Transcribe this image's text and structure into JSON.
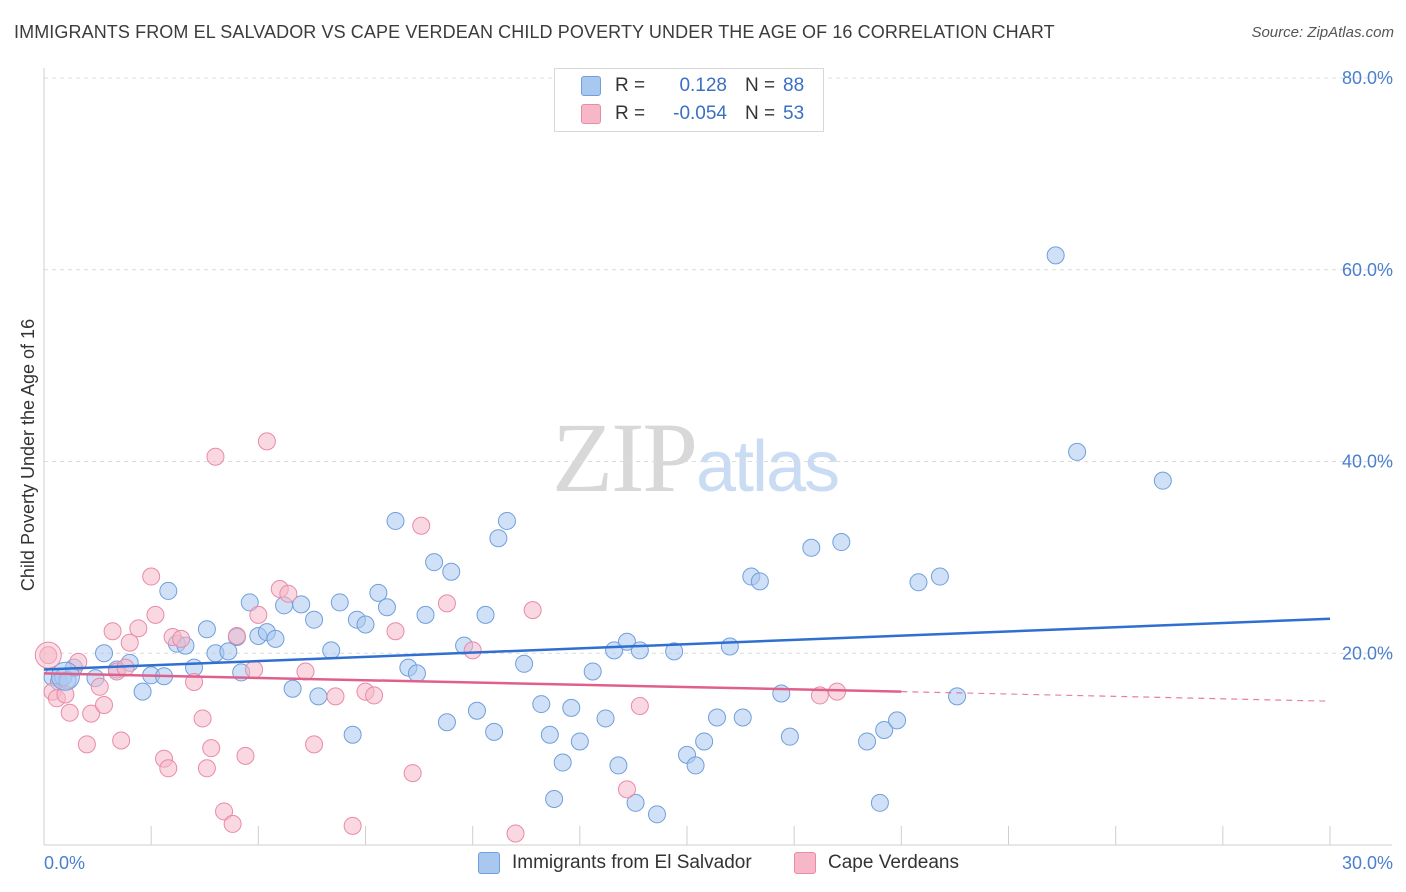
{
  "title": "IMMIGRANTS FROM EL SALVADOR VS CAPE VERDEAN CHILD POVERTY UNDER THE AGE OF 16 CORRELATION CHART",
  "source": "Source: ZipAtlas.com",
  "watermark": {
    "zip": "ZIP",
    "atlas": "atlas"
  },
  "legend": {
    "rows": [
      {
        "r_label": "R =",
        "r_value": "0.128",
        "n_label": "N =",
        "n_value": "88",
        "color": "#a9c8f0"
      },
      {
        "r_label": "R =",
        "r_value": "-0.054",
        "n_label": "N =",
        "n_value": "53",
        "color": "#f6b8c8"
      }
    ]
  },
  "bottom_legend": {
    "series1": "Immigrants from El Salvador",
    "series2": "Cape Verdeans"
  },
  "chart_data": {
    "type": "scatter",
    "title": "IMMIGRANTS FROM EL SALVADOR VS CAPE VERDEAN CHILD POVERTY UNDER THE AGE OF 16 CORRELATION CHART",
    "xlabel": "",
    "ylabel": "Child Poverty Under the Age of 16",
    "xlim": [
      0,
      30
    ],
    "ylim": [
      0,
      80
    ],
    "x_tick_labels": [
      "0.0%",
      "30.0%"
    ],
    "y_tick_labels": [
      "20.0%",
      "40.0%",
      "60.0%",
      "80.0%"
    ],
    "y_ticks": [
      20,
      40,
      60,
      80
    ],
    "grid": true,
    "legend_position": "top-center",
    "series": [
      {
        "name": "Immigrants from El Salvador",
        "color": "#a9c8f0",
        "stroke": "#6f9fdc",
        "line_color": "#2f6fd0",
        "trend": [
          [
            0,
            18.3
          ],
          [
            30,
            23.6
          ]
        ],
        "points": [
          [
            0.2,
            17.5
          ],
          [
            0.35,
            17.0
          ],
          [
            0.45,
            17.5
          ],
          [
            0.55,
            17.2
          ],
          [
            0.7,
            18.5
          ],
          [
            1.2,
            17.4
          ],
          [
            1.4,
            20.0
          ],
          [
            1.7,
            18.3
          ],
          [
            2.0,
            19.0
          ],
          [
            2.3,
            16.0
          ],
          [
            2.5,
            17.7
          ],
          [
            2.8,
            17.6
          ],
          [
            2.9,
            26.5
          ],
          [
            3.1,
            21.0
          ],
          [
            3.3,
            20.8
          ],
          [
            3.5,
            18.5
          ],
          [
            3.8,
            22.5
          ],
          [
            4.0,
            20.0
          ],
          [
            4.3,
            20.2
          ],
          [
            4.5,
            21.7
          ],
          [
            4.6,
            18.0
          ],
          [
            4.8,
            25.3
          ],
          [
            5.0,
            21.8
          ],
          [
            5.2,
            22.2
          ],
          [
            5.4,
            21.5
          ],
          [
            5.6,
            25.0
          ],
          [
            5.8,
            16.3
          ],
          [
            6.0,
            25.1
          ],
          [
            6.3,
            23.5
          ],
          [
            6.4,
            15.5
          ],
          [
            6.7,
            20.3
          ],
          [
            6.9,
            25.3
          ],
          [
            7.2,
            11.5
          ],
          [
            7.3,
            23.5
          ],
          [
            7.5,
            23.0
          ],
          [
            7.8,
            26.3
          ],
          [
            8.0,
            24.8
          ],
          [
            8.2,
            33.8
          ],
          [
            8.5,
            18.5
          ],
          [
            8.7,
            17.9
          ],
          [
            8.9,
            24.0
          ],
          [
            9.1,
            29.5
          ],
          [
            9.4,
            12.8
          ],
          [
            9.5,
            28.5
          ],
          [
            9.8,
            20.8
          ],
          [
            10.1,
            14.0
          ],
          [
            10.3,
            24.0
          ],
          [
            10.5,
            11.8
          ],
          [
            10.6,
            32.0
          ],
          [
            10.8,
            33.8
          ],
          [
            11.2,
            18.9
          ],
          [
            11.6,
            14.7
          ],
          [
            11.8,
            11.5
          ],
          [
            11.9,
            4.8
          ],
          [
            12.1,
            8.6
          ],
          [
            12.3,
            14.3
          ],
          [
            12.5,
            10.8
          ],
          [
            12.8,
            18.1
          ],
          [
            13.1,
            13.2
          ],
          [
            13.3,
            20.3
          ],
          [
            13.4,
            8.3
          ],
          [
            13.6,
            21.2
          ],
          [
            13.8,
            4.4
          ],
          [
            13.9,
            20.3
          ],
          [
            14.3,
            3.2
          ],
          [
            14.7,
            20.2
          ],
          [
            15.0,
            9.4
          ],
          [
            15.2,
            8.3
          ],
          [
            15.4,
            10.8
          ],
          [
            15.7,
            13.3
          ],
          [
            16.0,
            20.7
          ],
          [
            16.3,
            13.3
          ],
          [
            16.5,
            28.0
          ],
          [
            16.7,
            27.5
          ],
          [
            17.2,
            15.8
          ],
          [
            17.4,
            11.3
          ],
          [
            17.9,
            31.0
          ],
          [
            18.6,
            31.6
          ],
          [
            19.2,
            10.8
          ],
          [
            19.5,
            4.4
          ],
          [
            19.6,
            12.0
          ],
          [
            19.9,
            13.0
          ],
          [
            20.4,
            27.4
          ],
          [
            20.9,
            28.0
          ],
          [
            21.3,
            15.5
          ],
          [
            23.6,
            61.5
          ],
          [
            24.1,
            41.0
          ],
          [
            26.1,
            38.0
          ]
        ]
      },
      {
        "name": "Cape Verdeans",
        "color": "#f6b8c8",
        "stroke": "#e98aa7",
        "line_color": "#e0608c",
        "trend": [
          [
            0,
            17.9
          ],
          [
            20,
            16.0
          ]
        ],
        "trend_dashed": [
          [
            20,
            16.0
          ],
          [
            30,
            15.0
          ]
        ],
        "points": [
          [
            0.1,
            19.8
          ],
          [
            0.2,
            16.0
          ],
          [
            0.3,
            15.3
          ],
          [
            0.5,
            15.7
          ],
          [
            0.6,
            13.8
          ],
          [
            0.8,
            19.1
          ],
          [
            1.0,
            10.5
          ],
          [
            1.1,
            13.7
          ],
          [
            1.3,
            16.5
          ],
          [
            1.4,
            14.6
          ],
          [
            1.6,
            22.3
          ],
          [
            1.7,
            18.1
          ],
          [
            1.8,
            10.9
          ],
          [
            1.9,
            18.5
          ],
          [
            2.0,
            21.1
          ],
          [
            2.2,
            22.6
          ],
          [
            2.5,
            28.0
          ],
          [
            2.6,
            24.0
          ],
          [
            2.8,
            9.0
          ],
          [
            2.9,
            8.0
          ],
          [
            3.0,
            21.7
          ],
          [
            3.2,
            21.5
          ],
          [
            3.5,
            17.0
          ],
          [
            3.7,
            13.2
          ],
          [
            3.8,
            8.0
          ],
          [
            3.9,
            10.1
          ],
          [
            4.0,
            40.5
          ],
          [
            4.2,
            3.5
          ],
          [
            4.4,
            2.2
          ],
          [
            4.5,
            21.8
          ],
          [
            4.7,
            9.3
          ],
          [
            4.9,
            18.3
          ],
          [
            5.0,
            24.0
          ],
          [
            5.2,
            42.1
          ],
          [
            5.5,
            26.7
          ],
          [
            5.7,
            26.2
          ],
          [
            6.1,
            18.1
          ],
          [
            6.3,
            10.5
          ],
          [
            6.8,
            15.5
          ],
          [
            7.2,
            2.0
          ],
          [
            7.5,
            16.0
          ],
          [
            7.7,
            15.6
          ],
          [
            8.2,
            22.3
          ],
          [
            8.6,
            7.5
          ],
          [
            8.8,
            33.3
          ],
          [
            9.4,
            25.2
          ],
          [
            10.0,
            20.3
          ],
          [
            11.0,
            1.2
          ],
          [
            11.4,
            24.5
          ],
          [
            13.6,
            5.8
          ],
          [
            13.9,
            14.5
          ],
          [
            18.1,
            15.6
          ],
          [
            18.5,
            16.0
          ]
        ]
      }
    ]
  }
}
